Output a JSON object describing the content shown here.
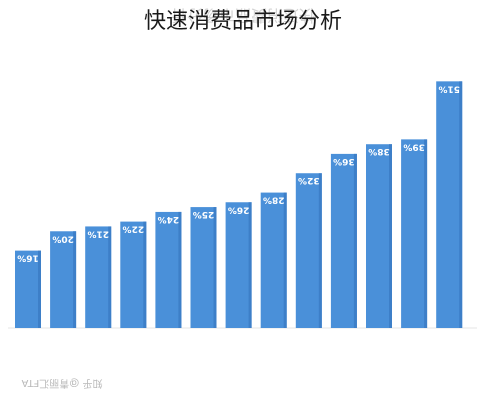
{
  "chart_data": {
    "type": "bar",
    "title": "快速消费品市场分析",
    "values": [
      16,
      20,
      21,
      22,
      24,
      25,
      26,
      28,
      32,
      36,
      38,
      39,
      51
    ],
    "data_labels": [
      "16%",
      "20%",
      "21%",
      "22%",
      "24%",
      "25%",
      "26%",
      "28%",
      "32%",
      "36%",
      "38%",
      "39%",
      "51%"
    ],
    "ylim": [
      0,
      55
    ],
    "grid": false,
    "bar_color": "#4a90d9",
    "bar_color_dark": "#3d7fc8"
  },
  "watermark": "知乎 @青丽汇FTA"
}
